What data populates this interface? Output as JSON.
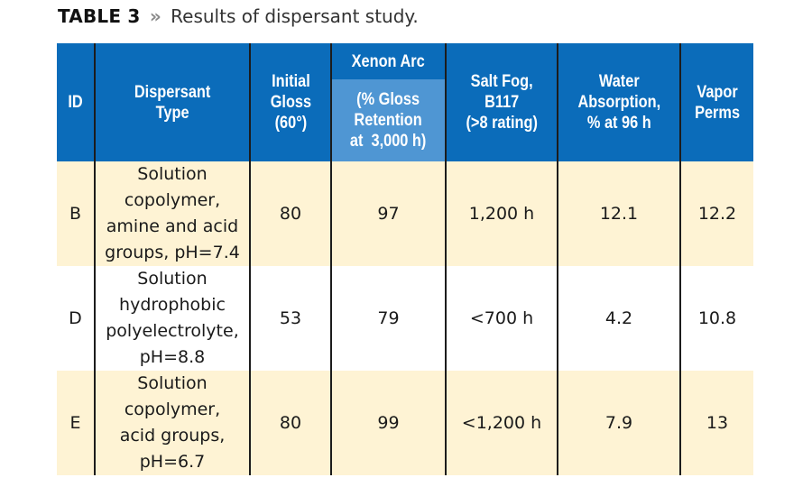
{
  "caption": {
    "label": "TABLE 3",
    "separator": "»",
    "text": "Results of dispersant study."
  },
  "colors": {
    "header_bg": "#0b6cba",
    "header_sub_bg": "#4f96d3",
    "row_shade_bg": "#fef3d4",
    "row_plain_bg": "#ffffff",
    "border": "#1c1c1c"
  },
  "table": {
    "headers": {
      "id": "ID",
      "type": [
        "Dispersant",
        "Type"
      ],
      "gloss": [
        "Initial",
        "Gloss",
        "(60°)"
      ],
      "xenon_top": "Xenon Arc",
      "xenon_sub": [
        "(% Gloss",
        "Retention",
        "at  3,000 h)"
      ],
      "salt": [
        "Salt Fog,",
        "B117",
        "(>8 rating)"
      ],
      "water": [
        "Water",
        "Absorption,",
        "% at 96 h"
      ],
      "vapor": [
        "Vapor",
        "Perms"
      ]
    },
    "rows": [
      {
        "id": "B",
        "type": [
          "Solution",
          "copolymer,",
          "amine and acid",
          "groups, pH=7.4"
        ],
        "gloss": "80",
        "xenon": "97",
        "salt": "1,200 h",
        "water": "12.1",
        "vapor": "12.2"
      },
      {
        "id": "D",
        "type": [
          "Solution",
          "hydrophobic",
          "polyelectrolyte,",
          "pH=8.8"
        ],
        "gloss": "53",
        "xenon": "79",
        "salt": "<700 h",
        "water": "4.2",
        "vapor": "10.8"
      },
      {
        "id": "E",
        "type": [
          "Solution",
          "copolymer,",
          "acid groups,",
          "pH=6.7"
        ],
        "gloss": "80",
        "xenon": "99",
        "salt": "<1,200 h",
        "water": "7.9",
        "vapor": "13"
      }
    ]
  }
}
